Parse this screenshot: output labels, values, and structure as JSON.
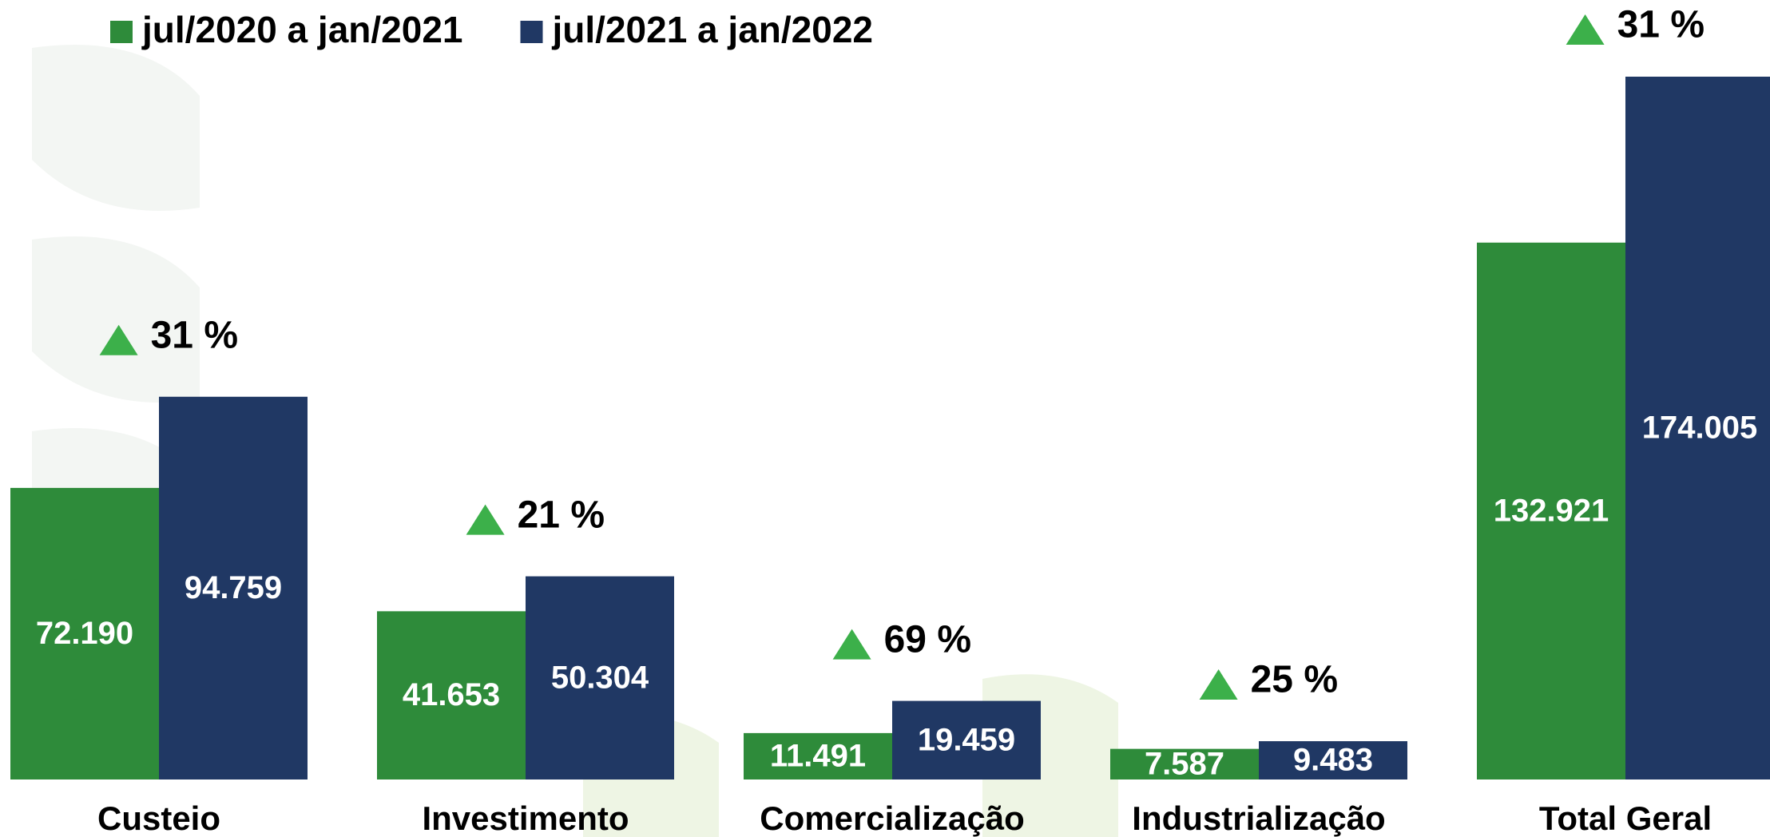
{
  "chart_data": {
    "type": "bar",
    "categories": [
      "Custeio",
      "Investimento",
      "Comercialização",
      "Industrialização",
      "Total Geral"
    ],
    "series": [
      {
        "name": "jul/2020 a jan/2021",
        "color": "#2e8b3a",
        "values": [
          72190,
          41653,
          11491,
          7587,
          132921
        ],
        "value_labels": [
          "72.190",
          "41.653",
          "11.491",
          "7.587",
          "132.921"
        ]
      },
      {
        "name": "jul/2021 a jan/2022",
        "color": "#203864",
        "values": [
          94759,
          50304,
          19459,
          9483,
          174005
        ],
        "value_labels": [
          "94.759",
          "50.304",
          "19.459",
          "9.483",
          "174.005"
        ]
      }
    ],
    "annotations": [
      "31 %",
      "21 %",
      "69 %",
      "25 %",
      "31 %"
    ],
    "annotation_color": "#3cb04a",
    "legend": "top-left"
  }
}
